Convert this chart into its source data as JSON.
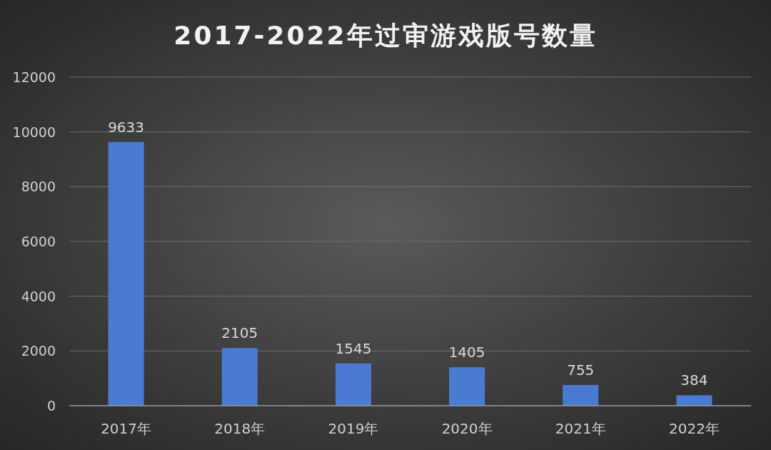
{
  "chart_data": {
    "type": "bar",
    "title": "2017-2022年过审游戏版号数量",
    "categories": [
      "2017年",
      "2018年",
      "2019年",
      "2020年",
      "2021年",
      "2022年"
    ],
    "values": [
      9633,
      2105,
      1545,
      1405,
      755,
      384
    ],
    "color": "#4a7bd2",
    "ylim": [
      0,
      12000
    ],
    "yticks": [
      0,
      2000,
      4000,
      6000,
      8000,
      10000,
      12000
    ],
    "grid": "y",
    "data_labels": true
  }
}
